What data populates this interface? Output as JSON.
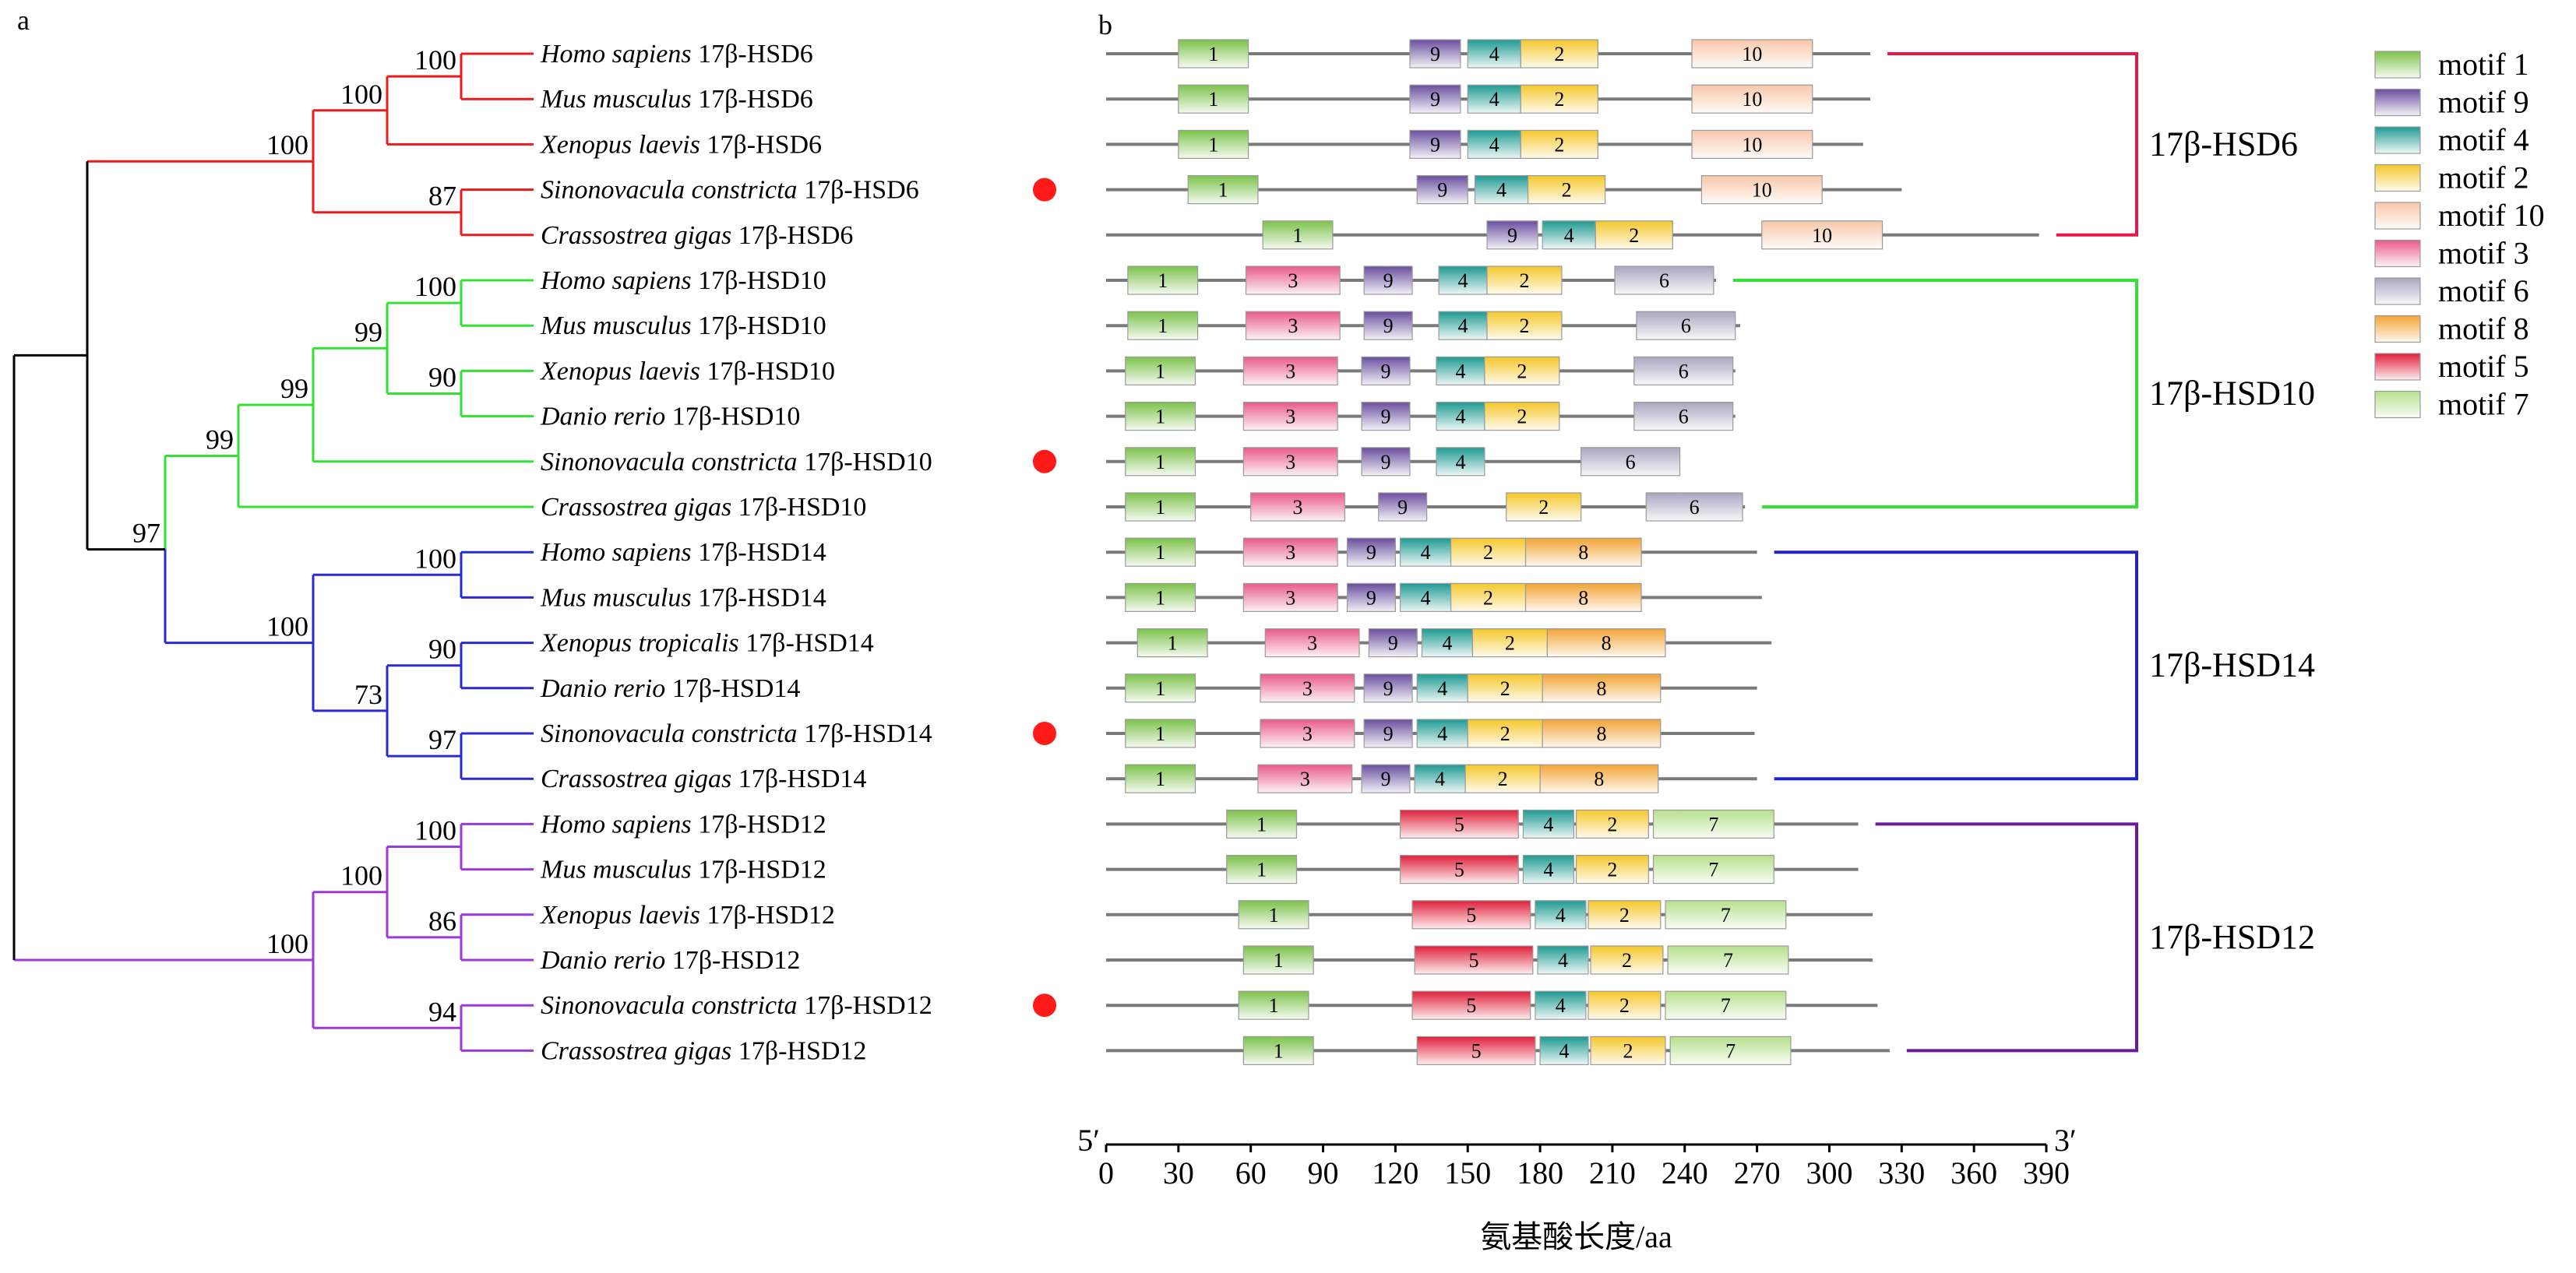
{
  "panels": {
    "a": "a",
    "b": "b"
  },
  "axis": {
    "ticks": [
      0,
      30,
      60,
      90,
      120,
      150,
      180,
      210,
      240,
      270,
      300,
      330,
      360,
      390
    ],
    "start_label": "5′",
    "end_label": "3′",
    "xlabel": "氨基酸长度/aa"
  },
  "motifs": [
    {
      "id": 1,
      "label": "motif 1",
      "color": "#7dc24b"
    },
    {
      "id": 9,
      "label": "motif 9",
      "color": "#6a4e9e"
    },
    {
      "id": 4,
      "label": "motif 4",
      "color": "#1e9a92"
    },
    {
      "id": 2,
      "label": "motif 2",
      "color": "#f5c72b"
    },
    {
      "id": 10,
      "label": "motif 10",
      "color": "#f8c7aa"
    },
    {
      "id": 3,
      "label": "motif 3",
      "color": "#e95a8a"
    },
    {
      "id": 6,
      "label": "motif 6",
      "color": "#a9a6c0"
    },
    {
      "id": 8,
      "label": "motif 8",
      "color": "#f3a436"
    },
    {
      "id": 5,
      "label": "motif 5",
      "color": "#e0203a"
    },
    {
      "id": 7,
      "label": "motif 7",
      "color": "#b6e08c"
    }
  ],
  "groups": [
    {
      "label": "17β-HSD6",
      "color": "#e8174a",
      "rows": [
        0,
        4
      ]
    },
    {
      "label": "17β-HSD10",
      "color": "#33e133",
      "rows": [
        5,
        10
      ]
    },
    {
      "label": "17β-HSD14",
      "color": "#2222cc",
      "rows": [
        11,
        16
      ]
    },
    {
      "label": "17β-HSD12",
      "color": "#6a1b9a",
      "rows": [
        17,
        22
      ]
    }
  ],
  "tree_colors": {
    "root": "#000000",
    "hsd6": "#e81c1c",
    "hsd10": "#33e133",
    "hsd14": "#2a2ad0",
    "hsd12": "#9b3ad6"
  },
  "bootstrap": [
    {
      "value": "100",
      "node": "h6_hm"
    },
    {
      "value": "100",
      "node": "h6_vert"
    },
    {
      "value": "100",
      "node": "h6"
    },
    {
      "value": "87",
      "node": "h6_moll"
    },
    {
      "value": "100",
      "node": "h10_hm"
    },
    {
      "value": "90",
      "node": "h10_xd"
    },
    {
      "value": "99",
      "node": "h10_vert"
    },
    {
      "value": "99",
      "node": "h10_vs"
    },
    {
      "value": "99",
      "node": "h10"
    },
    {
      "value": "97",
      "node": "h10_14"
    },
    {
      "value": "100",
      "node": "h14_hm"
    },
    {
      "value": "90",
      "node": "h14_xd"
    },
    {
      "value": "97",
      "node": "h14_moll"
    },
    {
      "value": "73",
      "node": "h14_xdsc"
    },
    {
      "value": "100",
      "node": "h14"
    },
    {
      "value": "100",
      "node": "h12_hm"
    },
    {
      "value": "86",
      "node": "h12_xd"
    },
    {
      "value": "100",
      "node": "h12_vert"
    },
    {
      "value": "94",
      "node": "h12_moll"
    },
    {
      "value": "100",
      "node": "h12"
    }
  ],
  "species": [
    {
      "genus": "Homo sapiens",
      "protein": "17β-HSD6",
      "marked": false,
      "length": 317,
      "motifs": [
        [
          1,
          30,
          59
        ],
        [
          9,
          126,
          147
        ],
        [
          4,
          150,
          172
        ],
        [
          2,
          172,
          204
        ],
        [
          10,
          243,
          293
        ]
      ]
    },
    {
      "genus": "Mus musculus",
      "protein": "17β-HSD6",
      "marked": false,
      "length": 317,
      "motifs": [
        [
          1,
          30,
          59
        ],
        [
          9,
          126,
          147
        ],
        [
          4,
          150,
          172
        ],
        [
          2,
          172,
          204
        ],
        [
          10,
          243,
          293
        ]
      ]
    },
    {
      "genus": "Xenopus laevis",
      "protein": "17β-HSD6",
      "marked": false,
      "length": 314,
      "motifs": [
        [
          1,
          30,
          59
        ],
        [
          9,
          126,
          147
        ],
        [
          4,
          150,
          172
        ],
        [
          2,
          172,
          204
        ],
        [
          10,
          243,
          293
        ]
      ]
    },
    {
      "genus": "Sinonovacula constricta",
      "protein": "17β-HSD6",
      "marked": true,
      "length": 330,
      "motifs": [
        [
          1,
          34,
          63
        ],
        [
          9,
          129,
          150
        ],
        [
          4,
          153,
          175
        ],
        [
          2,
          175,
          207
        ],
        [
          10,
          247,
          297
        ]
      ]
    },
    {
      "genus": "Crassostrea gigas",
      "protein": "17β-HSD6",
      "marked": false,
      "length": 387,
      "motifs": [
        [
          1,
          65,
          94
        ],
        [
          9,
          158,
          179
        ],
        [
          4,
          181,
          203
        ],
        [
          2,
          203,
          235
        ],
        [
          10,
          272,
          322
        ]
      ]
    },
    {
      "genus": "Homo sapiens",
      "protein": "17β-HSD10",
      "marked": false,
      "length": 253,
      "motifs": [
        [
          1,
          9,
          38
        ],
        [
          3,
          58,
          97
        ],
        [
          9,
          107,
          127
        ],
        [
          4,
          138,
          158
        ],
        [
          2,
          158,
          189
        ],
        [
          6,
          211,
          252
        ]
      ]
    },
    {
      "genus": "Mus musculus",
      "protein": "17β-HSD10",
      "marked": false,
      "length": 263,
      "motifs": [
        [
          1,
          9,
          38
        ],
        [
          3,
          58,
          97
        ],
        [
          9,
          107,
          127
        ],
        [
          4,
          138,
          158
        ],
        [
          2,
          158,
          189
        ],
        [
          6,
          220,
          261
        ]
      ]
    },
    {
      "genus": "Xenopus laevis",
      "protein": "17β-HSD10",
      "marked": false,
      "length": 261,
      "motifs": [
        [
          1,
          8,
          37
        ],
        [
          3,
          57,
          96
        ],
        [
          9,
          106,
          126
        ],
        [
          4,
          137,
          157
        ],
        [
          2,
          157,
          188
        ],
        [
          6,
          219,
          260
        ]
      ]
    },
    {
      "genus": "Danio rerio",
      "protein": "17β-HSD10",
      "marked": false,
      "length": 261,
      "motifs": [
        [
          1,
          8,
          37
        ],
        [
          3,
          57,
          96
        ],
        [
          9,
          106,
          126
        ],
        [
          4,
          137,
          157
        ],
        [
          2,
          157,
          188
        ],
        [
          6,
          219,
          260
        ]
      ]
    },
    {
      "genus": "Sinonovacula constricta",
      "protein": "17β-HSD10",
      "marked": true,
      "length": 238,
      "motifs": [
        [
          1,
          8,
          37
        ],
        [
          3,
          57,
          96
        ],
        [
          9,
          106,
          126
        ],
        [
          4,
          137,
          157
        ],
        [
          6,
          197,
          238
        ]
      ]
    },
    {
      "genus": "Crassostrea gigas",
      "protein": "17β-HSD10",
      "marked": false,
      "length": 265,
      "motifs": [
        [
          1,
          8,
          37
        ],
        [
          3,
          60,
          99
        ],
        [
          9,
          113,
          133
        ],
        [
          2,
          166,
          197
        ],
        [
          6,
          224,
          264
        ]
      ]
    },
    {
      "genus": "Homo sapiens",
      "protein": "17β-HSD14",
      "marked": false,
      "length": 270,
      "motifs": [
        [
          1,
          8,
          37
        ],
        [
          3,
          57,
          96
        ],
        [
          9,
          100,
          120
        ],
        [
          4,
          122,
          143
        ],
        [
          2,
          143,
          174
        ],
        [
          8,
          174,
          222
        ]
      ]
    },
    {
      "genus": "Mus musculus",
      "protein": "17β-HSD14",
      "marked": false,
      "length": 272,
      "motifs": [
        [
          1,
          8,
          37
        ],
        [
          3,
          57,
          96
        ],
        [
          9,
          100,
          120
        ],
        [
          4,
          122,
          143
        ],
        [
          2,
          143,
          174
        ],
        [
          8,
          174,
          222
        ]
      ]
    },
    {
      "genus": "Xenopus tropicalis",
      "protein": "17β-HSD14",
      "marked": false,
      "length": 276,
      "motifs": [
        [
          1,
          13,
          42
        ],
        [
          3,
          66,
          105
        ],
        [
          9,
          109,
          129
        ],
        [
          4,
          131,
          152
        ],
        [
          2,
          152,
          183
        ],
        [
          8,
          183,
          232
        ]
      ]
    },
    {
      "genus": "Danio rerio",
      "protein": "17β-HSD14",
      "marked": false,
      "length": 270,
      "motifs": [
        [
          1,
          8,
          37
        ],
        [
          3,
          64,
          103
        ],
        [
          9,
          107,
          127
        ],
        [
          4,
          129,
          150
        ],
        [
          2,
          150,
          181
        ],
        [
          8,
          181,
          230
        ]
      ]
    },
    {
      "genus": "Sinonovacula constricta",
      "protein": "17β-HSD14",
      "marked": true,
      "length": 269,
      "motifs": [
        [
          1,
          8,
          37
        ],
        [
          3,
          64,
          103
        ],
        [
          9,
          107,
          127
        ],
        [
          4,
          129,
          150
        ],
        [
          2,
          150,
          181
        ],
        [
          8,
          181,
          230
        ]
      ]
    },
    {
      "genus": "Crassostrea gigas",
      "protein": "17β-HSD14",
      "marked": false,
      "length": 270,
      "motifs": [
        [
          1,
          8,
          37
        ],
        [
          3,
          63,
          102
        ],
        [
          9,
          106,
          126
        ],
        [
          4,
          128,
          149
        ],
        [
          2,
          149,
          180
        ],
        [
          8,
          180,
          229
        ]
      ]
    },
    {
      "genus": "Homo sapiens",
      "protein": "17β-HSD12",
      "marked": false,
      "length": 312,
      "motifs": [
        [
          1,
          50,
          79
        ],
        [
          5,
          122,
          171
        ],
        [
          4,
          173,
          194
        ],
        [
          2,
          195,
          225
        ],
        [
          7,
          227,
          277
        ]
      ]
    },
    {
      "genus": "Mus musculus",
      "protein": "17β-HSD12",
      "marked": false,
      "length": 312,
      "motifs": [
        [
          1,
          50,
          79
        ],
        [
          5,
          122,
          171
        ],
        [
          4,
          173,
          194
        ],
        [
          2,
          195,
          225
        ],
        [
          7,
          227,
          277
        ]
      ]
    },
    {
      "genus": "Xenopus laevis",
      "protein": "17β-HSD12",
      "marked": false,
      "length": 318,
      "motifs": [
        [
          1,
          55,
          84
        ],
        [
          5,
          127,
          176
        ],
        [
          4,
          178,
          199
        ],
        [
          2,
          200,
          230
        ],
        [
          7,
          232,
          282
        ]
      ]
    },
    {
      "genus": "Danio rerio",
      "protein": "17β-HSD12",
      "marked": false,
      "length": 318,
      "motifs": [
        [
          1,
          57,
          86
        ],
        [
          5,
          128,
          177
        ],
        [
          4,
          179,
          200
        ],
        [
          2,
          201,
          231
        ],
        [
          7,
          233,
          283
        ]
      ]
    },
    {
      "genus": "Sinonovacula constricta",
      "protein": "17β-HSD12",
      "marked": true,
      "length": 320,
      "motifs": [
        [
          1,
          55,
          84
        ],
        [
          5,
          127,
          176
        ],
        [
          4,
          178,
          199
        ],
        [
          2,
          200,
          230
        ],
        [
          7,
          232,
          282
        ]
      ]
    },
    {
      "genus": "Crassostrea gigas",
      "protein": "17β-HSD12",
      "marked": false,
      "length": 325,
      "motifs": [
        [
          1,
          57,
          86
        ],
        [
          5,
          129,
          178
        ],
        [
          4,
          180,
          200
        ],
        [
          2,
          201,
          232
        ],
        [
          7,
          234,
          284
        ]
      ]
    }
  ]
}
